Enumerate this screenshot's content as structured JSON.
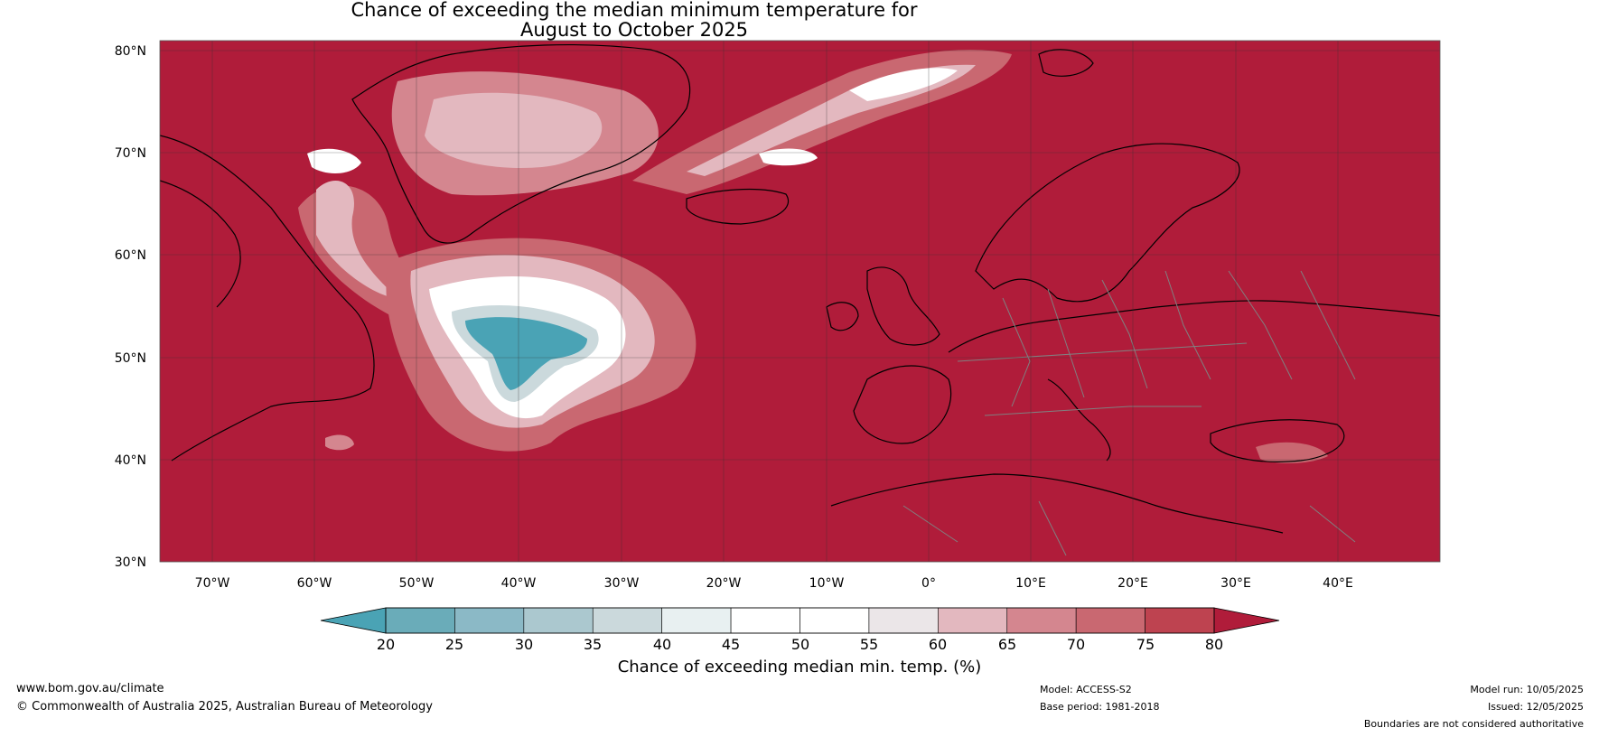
{
  "title": {
    "line1": "Chance of exceeding the median minimum temperature for",
    "line2": "August to October 2025"
  },
  "map": {
    "region": "North Atlantic and Europe",
    "background_color": "#b01c3a",
    "coastline_color": "#000000",
    "border_color": "#808080",
    "lat_labels": [
      "80°N",
      "70°N",
      "60°N",
      "50°N",
      "40°N",
      "30°N"
    ],
    "lon_labels": [
      "70°W",
      "60°W",
      "50°W",
      "40°W",
      "30°W",
      "20°W",
      "10°W",
      "0°",
      "10°E",
      "20°E",
      "30°E",
      "40°E"
    ]
  },
  "colorbar": {
    "ticks": [
      "20",
      "25",
      "30",
      "35",
      "40",
      "45",
      "50",
      "55",
      "60",
      "65",
      "70",
      "75",
      "80"
    ],
    "colors": [
      "#4aa3b5",
      "#6aacb9",
      "#8bb9c6",
      "#abc8cf",
      "#cbd9dc",
      "#e8f0f1",
      "#ffffff",
      "#ffffff",
      "#ebe6e8",
      "#e3b8bf",
      "#d4868f",
      "#c96871",
      "#be4350",
      "#b01c3a"
    ],
    "label": "Chance of exceeding median min. temp. (%)"
  },
  "footer": {
    "website": "www.bom.gov.au/climate",
    "copyright": "© Commonwealth of Australia 2025, Australian Bureau of Meteorology",
    "model": "Model: ACCESS-S2",
    "base_period": "Base period: 1981-2018",
    "model_run": "Model run: 10/05/2025",
    "issued": "Issued: 12/05/2025",
    "disclaimer": "Boundaries are not considered authoritative"
  }
}
